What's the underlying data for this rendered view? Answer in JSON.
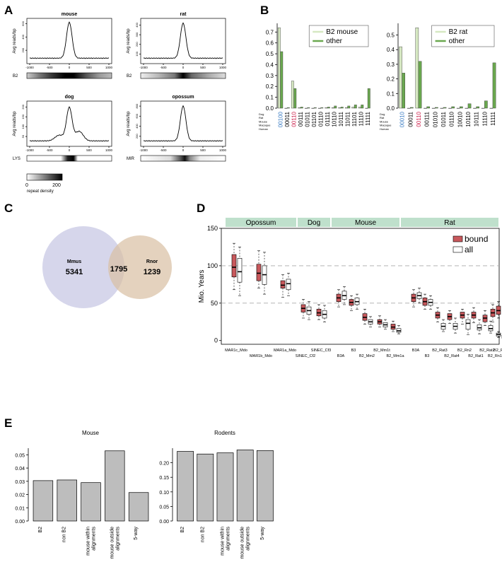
{
  "panel_letters": {
    "a": "A",
    "b": "B",
    "c": "C",
    "d": "D",
    "e": "E"
  },
  "panel_a": {
    "profile_ylabel": "Avg reads/bp",
    "x_ticks": [
      "-1000",
      "-500",
      "0",
      "500",
      "1000"
    ],
    "colorbar": {
      "label": "repeat density",
      "min": "0",
      "max": "200"
    },
    "panels": [
      {
        "title": "mouse",
        "repeat": "B2",
        "yticks": [
          "200",
          "400",
          "600"
        ],
        "ymax": 680,
        "peak": [
          620
        ]
      },
      {
        "title": "rat",
        "repeat": "B2",
        "yticks": [
          "100",
          "200",
          "300",
          "400"
        ],
        "ymax": 470,
        "peak": [
          420
        ]
      },
      {
        "title": "dog",
        "repeat": "LYS",
        "yticks": [
          "50",
          "100",
          "150",
          "200"
        ],
        "ymax": 230,
        "peak": [
          195
        ]
      },
      {
        "title": "opossum",
        "repeat": "MIR",
        "yticks": [
          "200",
          "400",
          "600",
          "800"
        ],
        "ymax": 900,
        "peak": [
          800
        ]
      }
    ]
  },
  "panel_b": {
    "row_labels": [
      "Dog",
      "Rat",
      "Mouse",
      "Macaque",
      "Human"
    ],
    "highlight_colors": {
      "blue": "#3b7dc4",
      "red": "#cc1f4a"
    },
    "colors": {
      "light": "#d6e8c2",
      "dark": "#6aa84f"
    }
  },
  "panel_c": {
    "left": {
      "name": "Mmus",
      "count": "5341",
      "color": "#cfcfe8"
    },
    "right": {
      "name": "Rnor",
      "count": "1239",
      "color": "#d8bfa2"
    },
    "overlap": "1795"
  },
  "panel_d": {
    "ylabel": "Mio. Years",
    "groups": [
      "Opossum",
      "Dog",
      "Mouse",
      "Rat"
    ],
    "group_color": "#bfe0cc",
    "legend": {
      "bound": "bound",
      "all": "all",
      "bound_color": "#c8585c"
    }
  },
  "chart_data": [
    {
      "type": "bar",
      "title": "",
      "categories": [
        "00100",
        "00011",
        "00110",
        "00111",
        "01011",
        "01101",
        "01110",
        "01111",
        "10110",
        "10111",
        "11011",
        "11101",
        "11110",
        "11111"
      ],
      "category_colors": [
        "blue",
        "",
        "red",
        "",
        "",
        "",
        "",
        "",
        "",
        "",
        "",
        "",
        "",
        ""
      ],
      "series": [
        {
          "name": "B2 mouse",
          "values": [
            0.74,
            0.0,
            0.25,
            0.005,
            0.0,
            0.0,
            0.0,
            0.005,
            0.005,
            0.005,
            0.005,
            0.01,
            0.01,
            0.0
          ]
        },
        {
          "name": "other",
          "values": [
            0.52,
            0.005,
            0.18,
            0.01,
            0.005,
            0.005,
            0.005,
            0.01,
            0.02,
            0.01,
            0.02,
            0.03,
            0.03,
            0.18
          ]
        }
      ],
      "yticks": [
        "0.0",
        "0.1",
        "0.2",
        "0.3",
        "0.4",
        "0.5",
        "0.6",
        "0.7"
      ],
      "ylim": [
        0,
        0.78
      ]
    },
    {
      "type": "bar",
      "title": "",
      "categories": [
        "00010",
        "00011",
        "00110",
        "00111",
        "01010",
        "01011",
        "01110",
        "10010",
        "10110",
        "10111",
        "11110",
        "11111"
      ],
      "category_colors": [
        "blue",
        "",
        "red",
        "",
        "",
        "",
        "",
        "",
        "",
        "",
        "",
        ""
      ],
      "series": [
        {
          "name": "B2 rat",
          "values": [
            0.42,
            0.0,
            0.55,
            0.0,
            0.0,
            0.0,
            0.0,
            0.0,
            0.0,
            0.0,
            0.0,
            0.0
          ]
        },
        {
          "name": "other",
          "values": [
            0.24,
            0.005,
            0.32,
            0.01,
            0.005,
            0.005,
            0.01,
            0.01,
            0.03,
            0.01,
            0.05,
            0.31
          ]
        }
      ],
      "yticks": [
        "0.0",
        "0.1",
        "0.2",
        "0.3",
        "0.4",
        "0.5"
      ],
      "ylim": [
        0,
        0.58
      ]
    },
    {
      "type": "box",
      "ylabel": "Mio. Years",
      "ylim": [
        -5,
        150
      ],
      "yticks": [
        "0",
        "50",
        "100",
        "150"
      ],
      "reference_lines": [
        50,
        100
      ],
      "groups": [
        {
          "name": "Opossum",
          "categories": [
            "MAR1c_Mdo",
            "MAR1b_Mdo",
            "MAR1a_Mdo"
          ]
        },
        {
          "name": "Dog",
          "categories": [
            "SINEC_Cf2",
            "SINEC_Cf3"
          ]
        },
        {
          "name": "Mouse",
          "categories": [
            "B3A",
            "B3",
            "B2_Mm2",
            "B2_Mm1t",
            "B2_Mm1a"
          ]
        },
        {
          "name": "Rat",
          "categories": [
            "B3A",
            "B3",
            "B2_Rat3",
            "B2_Rat4",
            "B2_Rn2",
            "B2_Rat1",
            "B2_Rat2",
            "B2_Rn1",
            "B2_Rn2"
          ]
        }
      ],
      "series": [
        {
          "name": "bound",
          "boxes": [
            [
              68,
              85,
              98,
              115,
              130
            ],
            [
              70,
              80,
              90,
              102,
              120
            ],
            [
              58,
              70,
              74,
              80,
              88
            ],
            [
              30,
              38,
              43,
              48,
              55
            ],
            [
              28,
              33,
              37,
              42,
              48
            ],
            [
              45,
              52,
              57,
              62,
              68
            ],
            [
              40,
              47,
              51,
              55,
              60
            ],
            [
              22,
              27,
              31,
              36,
              42
            ],
            [
              18,
              22,
              25,
              28,
              33
            ],
            [
              12,
              15,
              18,
              22,
              26
            ],
            [
              45,
              52,
              57,
              62,
              68
            ],
            [
              42,
              47,
              52,
              57,
              62
            ],
            [
              25,
              30,
              34,
              38,
              44
            ],
            [
              23,
              28,
              32,
              36,
              40
            ],
            [
              22,
              30,
              34,
              38,
              42
            ],
            [
              24,
              30,
              34,
              38,
              44
            ],
            [
              20,
              25,
              30,
              34,
              40
            ],
            [
              25,
              32,
              37,
              42,
              48
            ],
            [
              30,
              35,
              40,
              46,
              52
            ]
          ]
        },
        {
          "name": "all",
          "boxes": [
            [
              60,
              78,
              92,
              110,
              125
            ],
            [
              62,
              75,
              88,
              100,
              118
            ],
            [
              60,
              68,
              76,
              82,
              90
            ],
            [
              28,
              35,
              40,
              45,
              52
            ],
            [
              25,
              30,
              35,
              40,
              47
            ],
            [
              48,
              55,
              60,
              66,
              72
            ],
            [
              42,
              48,
              52,
              57,
              62
            ],
            [
              18,
              22,
              25,
              28,
              32
            ],
            [
              15,
              18,
              21,
              24,
              28
            ],
            [
              9,
              11,
              13,
              16,
              20
            ],
            [
              50,
              56,
              60,
              64,
              70
            ],
            [
              42,
              47,
              51,
              55,
              60
            ],
            [
              12,
              15,
              19,
              23,
              28
            ],
            [
              10,
              15,
              19,
              23,
              30
            ],
            [
              8,
              15,
              23,
              28,
              35
            ],
            [
              9,
              14,
              17,
              21,
              28
            ],
            [
              10,
              13,
              16,
              20,
              26
            ],
            [
              4,
              6,
              8,
              10,
              12
            ],
            [
              2,
              3,
              5,
              7,
              9
            ]
          ]
        }
      ]
    },
    {
      "type": "bar",
      "title": "Mouse",
      "categories": [
        "B2",
        "non B2",
        "mouse within alignments",
        "mouse outside alignments",
        "5-way"
      ],
      "values": [
        0.0305,
        0.031,
        0.029,
        0.053,
        0.0215
      ],
      "yticks": [
        "0.00",
        "0.01",
        "0.02",
        "0.03",
        "0.04",
        "0.05"
      ],
      "ylim": [
        0,
        0.055
      ]
    },
    {
      "type": "bar",
      "title": "Rodents",
      "categories": [
        "B2",
        "non B2",
        "mouse within alignments",
        "mouse outside alignments",
        "5-way"
      ],
      "values": [
        0.239,
        0.23,
        0.234,
        0.244,
        0.242
      ],
      "yticks": [
        "0.00",
        "0.05",
        "0.10",
        "0.15",
        "0.20"
      ],
      "ylim": [
        0,
        0.25
      ]
    }
  ]
}
